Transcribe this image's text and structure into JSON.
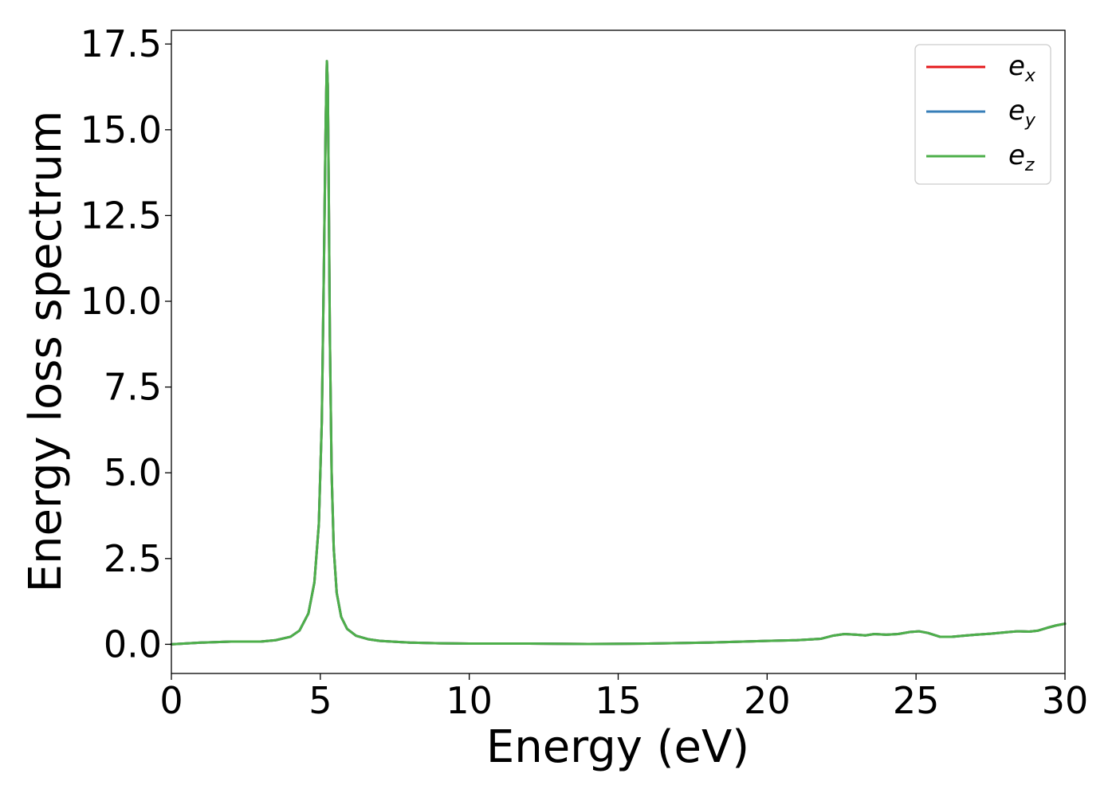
{
  "chart_data": {
    "type": "line",
    "title": "",
    "xlabel": "Energy (eV)",
    "ylabel": "Energy loss spectrum",
    "xlim": [
      0,
      30
    ],
    "ylim": [
      -0.85,
      17.9
    ],
    "xticks": [
      0,
      5,
      10,
      15,
      20,
      25,
      30
    ],
    "xtick_labels": [
      "0",
      "5",
      "10",
      "15",
      "20",
      "25",
      "30"
    ],
    "yticks": [
      0.0,
      2.5,
      5.0,
      7.5,
      10.0,
      12.5,
      15.0,
      17.5
    ],
    "ytick_labels": [
      "0.0",
      "2.5",
      "5.0",
      "7.5",
      "10.0",
      "12.5",
      "15.0",
      "17.5"
    ],
    "grid": false,
    "legend": {
      "placement": "top-right",
      "entries": [
        {
          "base": "e",
          "sub": "x",
          "color": "#e41a1c"
        },
        {
          "base": "e",
          "sub": "y",
          "color": "#377eb8"
        },
        {
          "base": "e",
          "sub": "z",
          "color": "#4daf4a"
        }
      ]
    },
    "series": [
      {
        "color": "#e41a1c",
        "x": [
          0,
          1,
          2,
          3,
          3.5,
          4,
          4.3,
          4.6,
          4.8,
          4.95,
          5.05,
          5.12,
          5.18,
          5.22,
          5.25,
          5.28,
          5.32,
          5.38,
          5.45,
          5.55,
          5.7,
          5.9,
          6.2,
          6.6,
          7,
          8,
          9,
          10,
          12,
          14,
          16,
          18,
          20,
          21,
          21.8,
          22.2,
          22.6,
          23,
          23.3,
          23.6,
          24,
          24.4,
          24.8,
          25.1,
          25.4,
          25.8,
          26.2,
          26.6,
          27,
          27.5,
          28,
          28.4,
          28.8,
          29.1,
          29.4,
          29.7,
          30
        ],
        "y": [
          0.0,
          0.05,
          0.08,
          0.08,
          0.12,
          0.22,
          0.4,
          0.9,
          1.8,
          3.5,
          6.5,
          11.0,
          15.2,
          17.0,
          16.3,
          13.5,
          9.0,
          5.0,
          2.8,
          1.5,
          0.8,
          0.45,
          0.25,
          0.15,
          0.1,
          0.05,
          0.03,
          0.02,
          0.02,
          0.01,
          0.02,
          0.05,
          0.1,
          0.12,
          0.16,
          0.25,
          0.3,
          0.28,
          0.26,
          0.3,
          0.28,
          0.3,
          0.36,
          0.38,
          0.33,
          0.22,
          0.22,
          0.25,
          0.28,
          0.31,
          0.35,
          0.38,
          0.37,
          0.4,
          0.48,
          0.55,
          0.6
        ]
      },
      {
        "color": "#377eb8",
        "x": [
          0,
          1,
          2,
          3,
          3.5,
          4,
          4.3,
          4.6,
          4.8,
          4.95,
          5.05,
          5.12,
          5.18,
          5.22,
          5.25,
          5.28,
          5.32,
          5.38,
          5.45,
          5.55,
          5.7,
          5.9,
          6.2,
          6.6,
          7,
          8,
          9,
          10,
          12,
          14,
          16,
          18,
          20,
          21,
          21.8,
          22.2,
          22.6,
          23,
          23.3,
          23.6,
          24,
          24.4,
          24.8,
          25.1,
          25.4,
          25.8,
          26.2,
          26.6,
          27,
          27.5,
          28,
          28.4,
          28.8,
          29.1,
          29.4,
          29.7,
          30
        ],
        "y": [
          0.0,
          0.05,
          0.08,
          0.08,
          0.12,
          0.22,
          0.4,
          0.9,
          1.8,
          3.5,
          6.5,
          11.0,
          15.2,
          17.0,
          16.3,
          13.5,
          9.0,
          5.0,
          2.8,
          1.5,
          0.8,
          0.45,
          0.25,
          0.15,
          0.1,
          0.05,
          0.03,
          0.02,
          0.02,
          0.01,
          0.02,
          0.05,
          0.1,
          0.12,
          0.16,
          0.25,
          0.3,
          0.28,
          0.26,
          0.3,
          0.28,
          0.3,
          0.36,
          0.38,
          0.33,
          0.22,
          0.22,
          0.25,
          0.28,
          0.31,
          0.35,
          0.38,
          0.37,
          0.4,
          0.48,
          0.55,
          0.6
        ]
      },
      {
        "color": "#4daf4a",
        "x": [
          0,
          1,
          2,
          3,
          3.5,
          4,
          4.3,
          4.6,
          4.8,
          4.95,
          5.05,
          5.12,
          5.18,
          5.22,
          5.25,
          5.28,
          5.32,
          5.38,
          5.45,
          5.55,
          5.7,
          5.9,
          6.2,
          6.6,
          7,
          8,
          9,
          10,
          12,
          14,
          16,
          18,
          20,
          21,
          21.8,
          22.2,
          22.6,
          23,
          23.3,
          23.6,
          24,
          24.4,
          24.8,
          25.1,
          25.4,
          25.8,
          26.2,
          26.6,
          27,
          27.5,
          28,
          28.4,
          28.8,
          29.1,
          29.4,
          29.7,
          30
        ],
        "y": [
          0.0,
          0.05,
          0.08,
          0.08,
          0.12,
          0.22,
          0.4,
          0.9,
          1.8,
          3.5,
          6.5,
          11.0,
          15.2,
          17.0,
          16.3,
          13.5,
          9.0,
          5.0,
          2.8,
          1.5,
          0.8,
          0.45,
          0.25,
          0.15,
          0.1,
          0.05,
          0.03,
          0.02,
          0.02,
          0.01,
          0.02,
          0.05,
          0.1,
          0.12,
          0.16,
          0.25,
          0.3,
          0.28,
          0.26,
          0.3,
          0.28,
          0.3,
          0.36,
          0.38,
          0.33,
          0.22,
          0.22,
          0.25,
          0.28,
          0.31,
          0.35,
          0.38,
          0.37,
          0.4,
          0.48,
          0.55,
          0.6
        ]
      }
    ]
  }
}
